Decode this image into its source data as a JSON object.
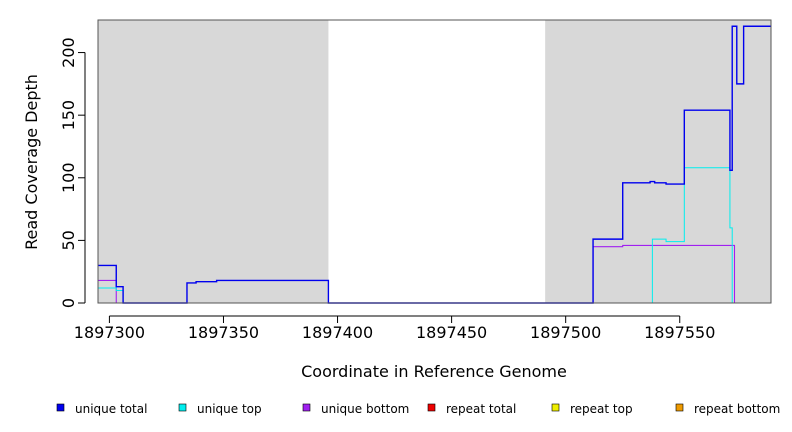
{
  "chart_data": {
    "type": "line",
    "title": "",
    "xlabel": "Coordinate in Reference Genome",
    "ylabel": "Read Coverage Depth",
    "xlim": [
      1897295,
      1897590
    ],
    "ylim": [
      0,
      226
    ],
    "xticks": [
      1897300,
      1897350,
      1897400,
      1897450,
      1897500,
      1897550
    ],
    "xtick_labels": [
      "1897300",
      "1897350",
      "1897400",
      "1897450",
      "1897500",
      "1897550"
    ],
    "yticks": [
      0,
      50,
      100,
      150,
      200
    ],
    "ytick_labels": [
      "0",
      "50",
      "100",
      "150",
      "200"
    ],
    "shaded_regions": [
      [
        1897295,
        1897396
      ],
      [
        1897491,
        1897590
      ]
    ],
    "shade_color": "#d8d8d8",
    "grid": false,
    "legend_position": "bottom",
    "series": [
      {
        "name": "unique total",
        "color": "#0000ee",
        "x": [
          1897295,
          1897301,
          1897302,
          1897303,
          1897304,
          1897305,
          1897306,
          1897334,
          1897336,
          1897338,
          1897347,
          1897395,
          1897396,
          1897491,
          1897512,
          1897525,
          1897537,
          1897539,
          1897544,
          1897552,
          1897572,
          1897573,
          1897575,
          1897578,
          1897590
        ],
        "y": [
          30,
          30,
          30,
          13,
          13,
          13,
          0,
          16,
          16,
          17,
          18,
          18,
          0,
          0,
          51,
          96,
          97,
          96,
          95,
          154,
          106,
          221,
          175,
          221,
          221
        ]
      },
      {
        "name": "unique top",
        "color": "#00eeee",
        "x": [
          1897295,
          1897302,
          1897303,
          1897306,
          1897491,
          1897512,
          1897538,
          1897544,
          1897552,
          1897572,
          1897573,
          1897590
        ],
        "y": [
          12,
          12,
          10,
          0,
          0,
          0,
          51,
          49,
          108,
          60,
          0,
          0
        ],
        "style": "thin"
      },
      {
        "name": "unique bottom",
        "color": "#a020f0",
        "x": [
          1897295,
          1897302,
          1897303,
          1897491,
          1897512,
          1897525,
          1897574,
          1897590
        ],
        "y": [
          18,
          18,
          0,
          0,
          45,
          46,
          0,
          0
        ]
      },
      {
        "name": "repeat total",
        "color": "#ee0000",
        "x": [
          1897295,
          1897590
        ],
        "y": [
          0,
          0
        ]
      },
      {
        "name": "repeat top",
        "color": "#eeee00",
        "x": [
          1897295,
          1897590
        ],
        "y": [
          0,
          0
        ]
      },
      {
        "name": "repeat bottom",
        "color": "#ee9a00",
        "x": [
          1897295,
          1897590
        ],
        "y": [
          0,
          0
        ]
      }
    ]
  }
}
